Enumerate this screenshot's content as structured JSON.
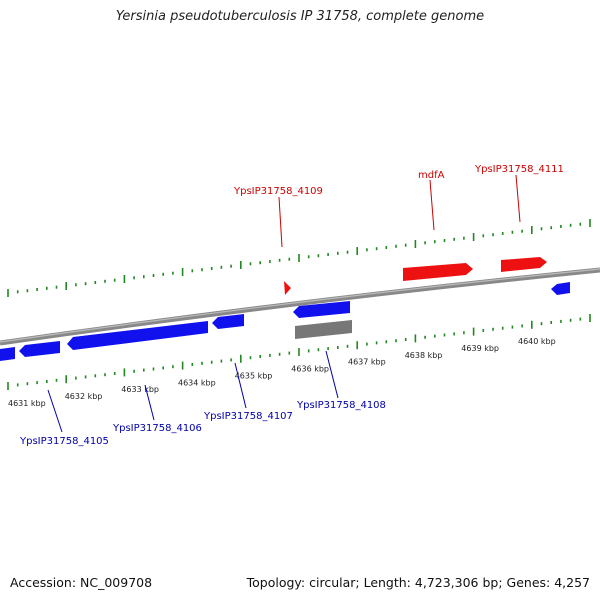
{
  "title": "Yersinia pseudotuberculosis IP 31758, complete genome",
  "footer": {
    "accession": "Accession: NC_009708",
    "summary": "Topology: circular; Length: 4,723,306 bp; Genes: 4,257"
  },
  "colors": {
    "forward_gene": "#ee1111",
    "reverse_gene": "#1111ee",
    "other_feature": "#777777",
    "tick": "#228822",
    "backbone": "#888888"
  },
  "scale": {
    "unit": "kbp",
    "labels": [
      "4631 kbp",
      "4632 kbp",
      "4633 kbp",
      "4634 kbp",
      "4635 kbp",
      "4636 kbp",
      "4637 kbp",
      "4638 kbp",
      "4639 kbp",
      "4640 kbp"
    ]
  },
  "gene_labels": [
    {
      "name": "YpsIP31758_4109",
      "strand": "forward"
    },
    {
      "name": "mdfA",
      "strand": "forward"
    },
    {
      "name": "YpsIP31758_4111",
      "strand": "forward"
    },
    {
      "name": "YpsIP31758_4105",
      "strand": "reverse"
    },
    {
      "name": "YpsIP31758_4106",
      "strand": "reverse"
    },
    {
      "name": "YpsIP31758_4107",
      "strand": "reverse"
    },
    {
      "name": "YpsIP31758_4108",
      "strand": "reverse"
    }
  ]
}
